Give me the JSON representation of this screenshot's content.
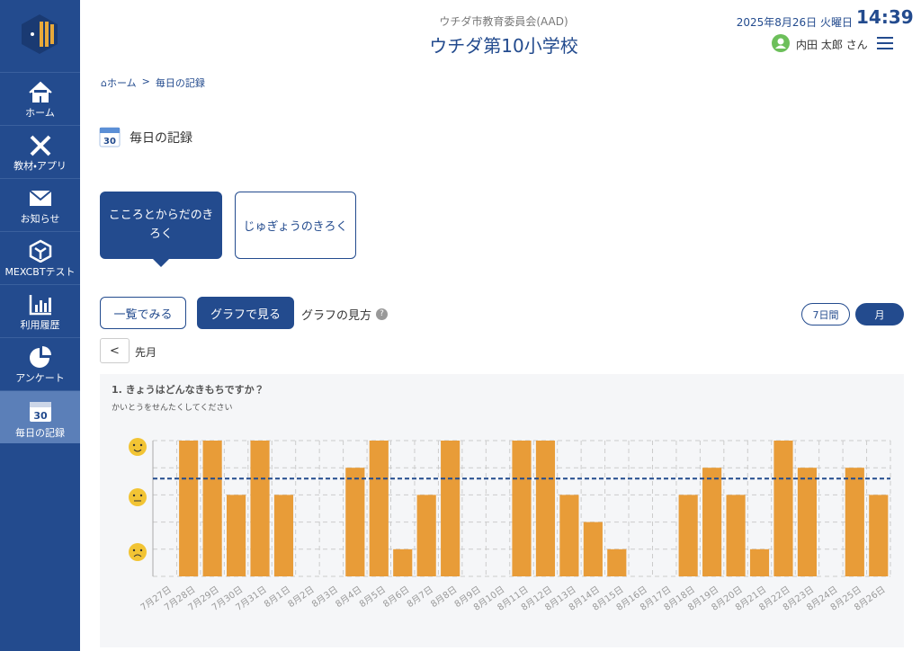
{
  "header": {
    "org": "ウチダ市教育委員会(AAD)",
    "school": "ウチダ第10小学校",
    "date": "2025年8月26日 火曜日",
    "time": "14:39",
    "user": "内田 太郎 さん"
  },
  "nav": [
    "ホーム",
    "教材・アプリ",
    "お知らせ",
    "MEXCBTテスト",
    "利用履歴",
    "アンケート",
    "毎日の記録"
  ],
  "icon_day": "30",
  "breadcrumb": [
    "ホーム",
    "毎日の記録"
  ],
  "breadcrumb_separator": ">",
  "page_title": "毎日の記録",
  "tabs": [
    "こころとからだのきろく",
    "じゅぎょうのきろく"
  ],
  "view_buttons": [
    "一覧でみる",
    "グラフで見る"
  ],
  "help": "グラフの見方",
  "help_icon": "?",
  "period_buttons": [
    "7日間",
    "月"
  ],
  "prev_button": "<",
  "prev_label": "先月",
  "chart_data": {
    "type": "bar",
    "title": "1. きょうはどんなきもちですか？",
    "subtitle": "かいとうをせんたくしてください",
    "categories": [
      "7月27日",
      "7月28日",
      "7月29日",
      "7月30日",
      "7月31日",
      "8月1日",
      "8月2日",
      "8月3日",
      "8月4日",
      "8月5日",
      "8月6日",
      "8月7日",
      "8月8日",
      "8月9日",
      "8月10日",
      "8月11日",
      "8月12日",
      "8月13日",
      "8月14日",
      "8月15日",
      "8月16日",
      "8月17日",
      "8月18日",
      "8月19日",
      "8月20日",
      "8月21日",
      "8月22日",
      "8月23日",
      "8月24日",
      "8月25日",
      "8月26日"
    ],
    "values": [
      null,
      5,
      5,
      3,
      5,
      3,
      null,
      null,
      4,
      5,
      1,
      3,
      5,
      null,
      null,
      5,
      5,
      3,
      2,
      1,
      null,
      null,
      3,
      4,
      3,
      1,
      5,
      4,
      null,
      4,
      3
    ],
    "color": "#e89c38",
    "ylim": [
      0,
      5
    ],
    "yticks": [
      0,
      1,
      2,
      3,
      4,
      5
    ],
    "grid": true,
    "average": 3.6,
    "average_color": "#234b8e"
  }
}
